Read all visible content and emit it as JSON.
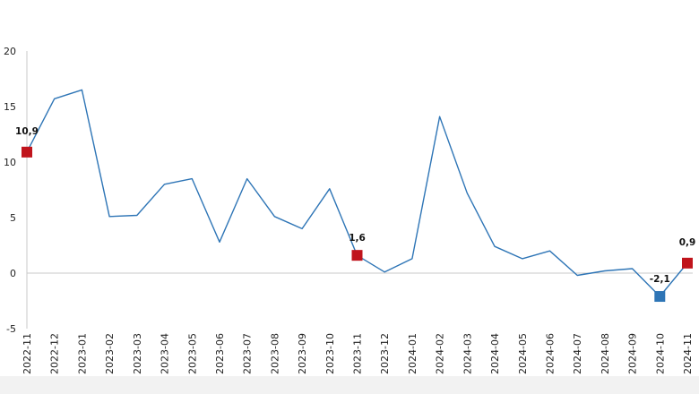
{
  "chart_data": {
    "type": "line",
    "title": "",
    "xlabel": "",
    "ylabel": "",
    "ylim": [
      -5,
      20
    ],
    "yticks": [
      -5,
      0,
      5,
      10,
      15,
      20
    ],
    "ytick_labels": [
      "-5",
      "0",
      "5",
      "10",
      "15",
      "20"
    ],
    "grid": false,
    "legend": "none",
    "categories": [
      "2022-11",
      "2022-12",
      "2023-01",
      "2023-02",
      "2023-03",
      "2023-04",
      "2023-05",
      "2023-06",
      "2023-07",
      "2023-08",
      "2023-09",
      "2023-10",
      "2023-11",
      "2023-12",
      "2024-01",
      "2024-02",
      "2024-03",
      "2024-04",
      "2024-05",
      "2024-06",
      "2024-07",
      "2024-08",
      "2024-09",
      "2024-10",
      "2024-11"
    ],
    "series": [
      {
        "values": [
          10.9,
          15.7,
          16.5,
          5.1,
          5.2,
          8.0,
          8.5,
          2.8,
          8.5,
          5.1,
          4.0,
          7.6,
          1.6,
          0.1,
          1.3,
          14.1,
          7.2,
          2.4,
          1.3,
          2.0,
          -0.2,
          0.2,
          0.4,
          -2.1,
          0.9
        ],
        "color": "#2e75b6"
      }
    ],
    "markers": [
      {
        "index": 0,
        "label": "10,9",
        "color": "#c0141c"
      },
      {
        "index": 12,
        "label": "1,6",
        "color": "#c0141c"
      },
      {
        "index": 23,
        "label": "-2,1",
        "color": "#2e75b6"
      },
      {
        "index": 24,
        "label": "0,9",
        "color": "#c0141c"
      }
    ],
    "colors": {
      "line": "#2e75b6",
      "axis": "#c8c8c8",
      "high_marker": "#c0141c",
      "low_marker": "#2e75b6"
    }
  }
}
